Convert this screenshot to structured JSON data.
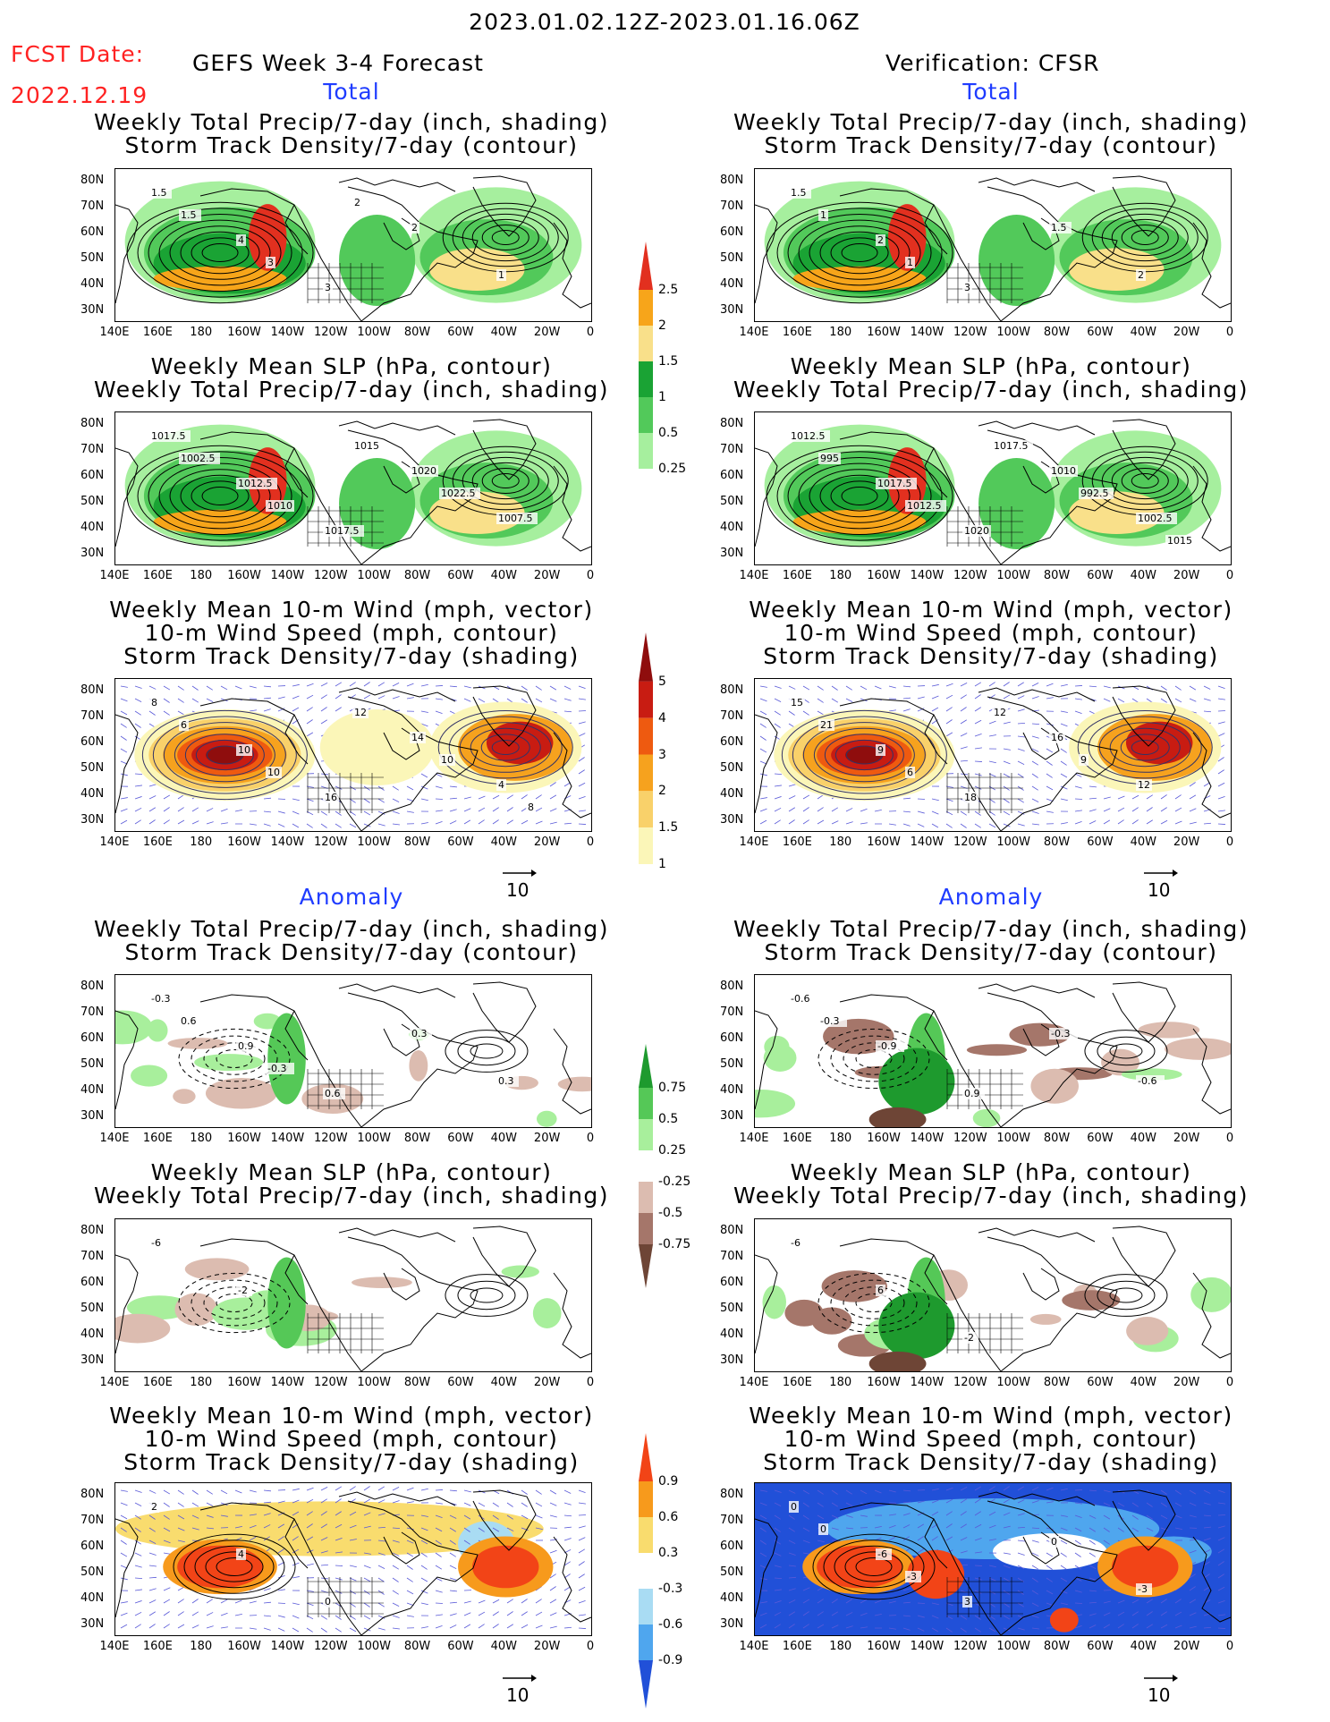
{
  "header": {
    "period": "2023.01.02.12Z-2023.01.16.06Z",
    "fcst_label": "FCST Date:",
    "fcst_date": "2022.12.19",
    "forecast_title": "GEFS Week 3-4 Forecast",
    "verification_title": "Verification: CFSR"
  },
  "sections": {
    "total": "Total",
    "anomaly": "Anomaly"
  },
  "panel_titles": {
    "precip_storm": [
      "Weekly Total Precip/7-day (inch, shading)",
      "Storm Track Density/7-day (contour)"
    ],
    "slp_precip": [
      "Weekly Mean SLP (hPa, contour)",
      "Weekly Total Precip/7-day (inch, shading)"
    ],
    "wind_storm": [
      "Weekly Mean 10-m Wind (mph, vector)",
      "10-m Wind Speed (mph, contour)",
      "Storm Track Density/7-day (shading)"
    ]
  },
  "axes": {
    "lat": [
      "80N",
      "70N",
      "60N",
      "50N",
      "40N",
      "30N"
    ],
    "lon": [
      "140E",
      "160E",
      "180",
      "160W",
      "140W",
      "120W",
      "100W",
      "80W",
      "60W",
      "40W",
      "20W",
      "0"
    ]
  },
  "vector_ref": "10",
  "colorbars": {
    "precip_total": {
      "labels": [
        "2.5",
        "2",
        "1.5",
        "1",
        "0.5",
        "0.25"
      ],
      "colors": [
        "#e2301f",
        "#f7a51a",
        "#f9e08a",
        "#1aa334",
        "#52c95a",
        "#a6ef9e"
      ]
    },
    "storm_total": {
      "labels": [
        "5",
        "4",
        "3",
        "2",
        "1.5",
        "1"
      ],
      "colors": [
        "#8f0d0d",
        "#c81c12",
        "#ee5a10",
        "#f6a21e",
        "#f9d16a",
        "#fbf6b8"
      ]
    },
    "precip_anom": {
      "labels": [
        "0.75",
        "0.5",
        "0.25",
        "-0.25",
        "-0.5",
        "-0.75"
      ],
      "colors": [
        "#1e9a2e",
        "#55c857",
        "#a8ef9c",
        "#ffffff",
        "#dcbcb0",
        "#a5766a",
        "#6e4536"
      ]
    },
    "storm_anom": {
      "labels": [
        "0.9",
        "0.6",
        "0.3",
        "-0.3",
        "-0.6",
        "-0.9"
      ],
      "colors": [
        "#f24417",
        "#f79a1c",
        "#f9dc6e",
        "#ffffff",
        "#a9dcf3",
        "#4fa6ee",
        "#2150d8"
      ]
    }
  },
  "map_labels": {
    "f_total_precip": [
      "1.5",
      "4",
      "3",
      "2",
      "1",
      "1.5",
      "3",
      "2"
    ],
    "v_total_precip": [
      "1.5",
      "2",
      "3",
      "1.5",
      "2",
      "1",
      "1"
    ],
    "f_total_slp": [
      "1017.5",
      "1012.5",
      "1017.5",
      "1020",
      "1007.5",
      "1002.5",
      "1010",
      "1015",
      "1022.5"
    ],
    "v_total_slp": [
      "1012.5",
      "1017.5",
      "1020",
      "1010",
      "1002.5",
      "995",
      "1012.5",
      "1017.5",
      "992.5",
      "1015"
    ],
    "f_total_wind": [
      "8",
      "10",
      "16",
      "14",
      "4",
      "6",
      "10",
      "12",
      "10",
      "8"
    ],
    "v_total_wind": [
      "15",
      "9",
      "18",
      "16",
      "12",
      "21",
      "6",
      "12",
      "9"
    ],
    "f_anom_precip": [
      "-0.3",
      "0.9",
      "0.6",
      "0.3",
      "0.3",
      "0.6",
      "-0.3"
    ],
    "v_anom_precip": [
      "-0.6",
      "-0.9",
      "0.9",
      "-0.3",
      "-0.6",
      "-0.3"
    ],
    "f_anom_slp": [
      "-6",
      "-2"
    ],
    "v_anom_slp": [
      "-6",
      "6",
      "-2"
    ],
    "f_anom_wind": [
      "2",
      "4",
      "0"
    ],
    "v_anom_wind": [
      "0",
      "-6",
      "3",
      "0",
      "-3",
      "0",
      "-3"
    ]
  }
}
